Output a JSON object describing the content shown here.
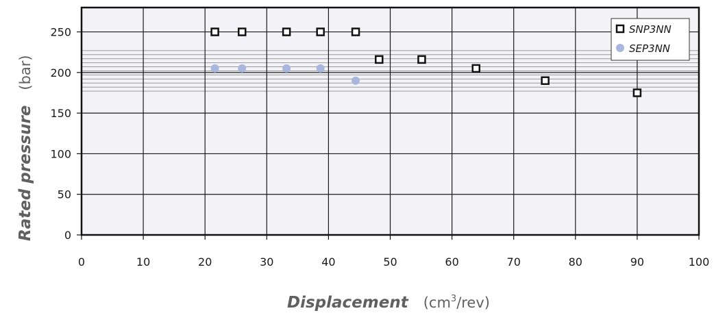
{
  "chart_data": {
    "type": "scatter",
    "xlabel": "Displacement",
    "xlabel_unit_pre": "(cm",
    "xlabel_unit_sup": "3",
    "xlabel_unit_post": "/rev)",
    "ylabel": "Rated pressure",
    "ylabel_unit": "(bar)",
    "xlim": [
      0,
      100
    ],
    "ylim": [
      0,
      280
    ],
    "x_ticks": [
      0,
      10,
      20,
      30,
      40,
      50,
      60,
      70,
      80,
      90,
      100
    ],
    "y_ticks": [
      0,
      50,
      100,
      150,
      200,
      250
    ],
    "grid": true,
    "legend_position": "top-right",
    "reference_lines": [
      177,
      182,
      187,
      192,
      197,
      202,
      207,
      212,
      217,
      222,
      227
    ],
    "series": [
      {
        "name": "SNP3NN",
        "marker": "open-square",
        "color": "#111111",
        "points": [
          {
            "x": 21.6,
            "y": 250
          },
          {
            "x": 26.0,
            "y": 250
          },
          {
            "x": 33.2,
            "y": 250
          },
          {
            "x": 38.7,
            "y": 250
          },
          {
            "x": 44.4,
            "y": 250
          },
          {
            "x": 48.2,
            "y": 216
          },
          {
            "x": 55.1,
            "y": 216
          },
          {
            "x": 63.9,
            "y": 205
          },
          {
            "x": 75.1,
            "y": 190
          },
          {
            "x": 90.0,
            "y": 175
          }
        ]
      },
      {
        "name": "SEP3NN",
        "marker": "filled-circle",
        "color": "#a9b6dd",
        "points": [
          {
            "x": 21.6,
            "y": 205
          },
          {
            "x": 26.0,
            "y": 205
          },
          {
            "x": 33.2,
            "y": 205
          },
          {
            "x": 38.7,
            "y": 205
          },
          {
            "x": 44.4,
            "y": 190
          }
        ]
      }
    ]
  },
  "colors": {
    "plot_background": "#f2f2f7",
    "grid": "#1a1a1a",
    "reference_line": "#9a9a9a",
    "axis_label": "#606060"
  }
}
